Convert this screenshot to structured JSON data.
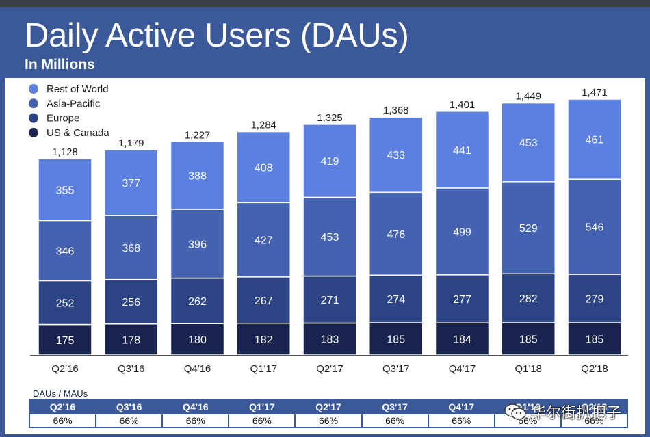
{
  "title": "Daily Active Users (DAUs)",
  "subtitle": "In Millions",
  "colors": {
    "header": "#3b5998",
    "rest_of_world": "#5b80e0",
    "asia_pacific": "#4562b0",
    "europe": "#2c4384",
    "us_canada": "#18244f"
  },
  "chart_data": {
    "type": "bar",
    "stacked": true,
    "categories": [
      "Q2'16",
      "Q3'16",
      "Q4'16",
      "Q1'17",
      "Q2'17",
      "Q3'17",
      "Q4'17",
      "Q1'18",
      "Q2'18"
    ],
    "series": [
      {
        "name": "US & Canada",
        "color": "#18244f",
        "values": [
          175,
          178,
          180,
          182,
          183,
          185,
          184,
          185,
          185
        ]
      },
      {
        "name": "Europe",
        "color": "#2c4384",
        "values": [
          252,
          256,
          262,
          267,
          271,
          274,
          277,
          282,
          279
        ]
      },
      {
        "name": "Asia-Pacific",
        "color": "#4562b0",
        "values": [
          346,
          368,
          396,
          427,
          453,
          476,
          499,
          529,
          546
        ]
      },
      {
        "name": "Rest of World",
        "color": "#5b80e0",
        "values": [
          355,
          377,
          388,
          408,
          419,
          433,
          441,
          453,
          461
        ]
      }
    ],
    "totals": [
      "1,128",
      "1,179",
      "1,227",
      "1,284",
      "1,325",
      "1,368",
      "1,401",
      "1,449",
      "1,471"
    ],
    "legend": [
      "Rest of World",
      "Asia-Pacific",
      "Europe",
      "US & Canada"
    ],
    "legend_position": "top-left",
    "grid": false,
    "ylim": [
      0,
      1471
    ]
  },
  "dau_mau": {
    "caption": "DAUs / MAUs",
    "quarters": [
      "Q2'16",
      "Q3'16",
      "Q4'16",
      "Q1'17",
      "Q2'17",
      "Q3'17",
      "Q4'17",
      "Q1'18",
      "Q2'18"
    ],
    "values": [
      "66%",
      "66%",
      "66%",
      "66%",
      "66%",
      "66%",
      "66%",
      "66%",
      "66%"
    ]
  },
  "watermark": {
    "text": "华尔街扒把子",
    "icon": "wechat-icon"
  }
}
